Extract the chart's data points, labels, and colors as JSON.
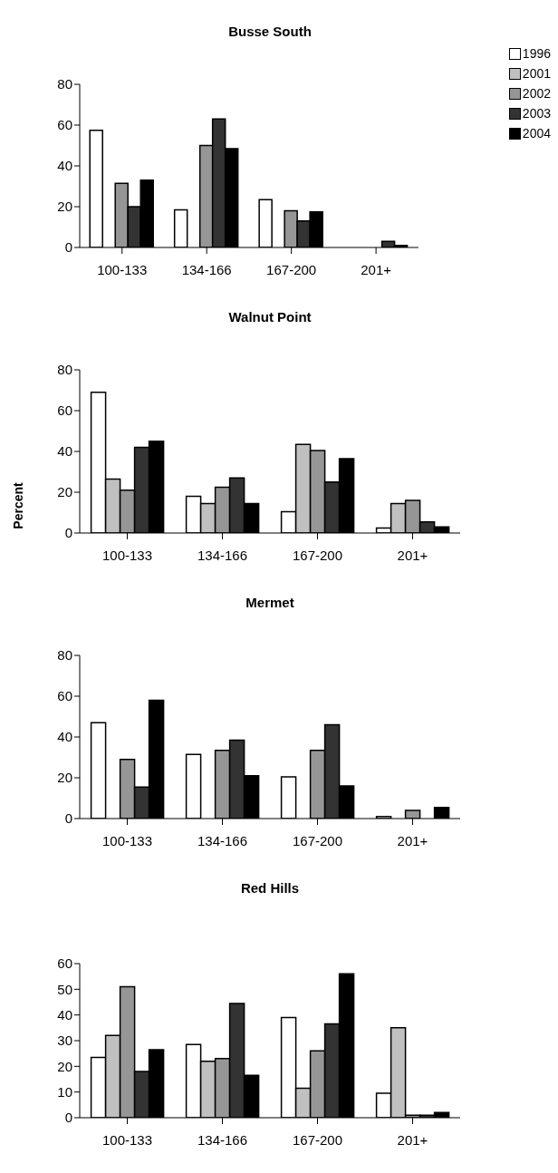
{
  "chart_data": [
    {
      "type": "bar",
      "title": "Busse South",
      "categories": [
        "100-133",
        "134-166",
        "167-200",
        "201+"
      ],
      "ylim": [
        0,
        80
      ],
      "yticks": [
        0,
        20,
        40,
        60,
        80
      ],
      "legend": "right",
      "series": [
        {
          "name": "1996",
          "color": "#ffffff",
          "values": [
            57.5,
            18.5,
            23.5,
            null
          ]
        },
        {
          "name": "2001",
          "color": "#c0c0c0",
          "values": [
            null,
            null,
            null,
            null
          ]
        },
        {
          "name": "2002",
          "color": "#969696",
          "values": [
            31.5,
            50,
            18,
            null
          ]
        },
        {
          "name": "2003",
          "color": "#333333",
          "values": [
            20,
            63,
            13,
            3
          ]
        },
        {
          "name": "2004",
          "color": "#000000",
          "values": [
            33,
            48.5,
            17.5,
            1
          ]
        }
      ]
    },
    {
      "type": "bar",
      "title": "Walnut Point",
      "ylabel": "Percent",
      "categories": [
        "100-133",
        "134-166",
        "167-200",
        "201+"
      ],
      "ylim": [
        0,
        80
      ],
      "yticks": [
        0,
        20,
        40,
        60,
        80
      ],
      "series": [
        {
          "color": "#ffffff",
          "values": [
            69,
            18,
            10.5,
            2.5
          ]
        },
        {
          "color": "#c0c0c0",
          "values": [
            26.5,
            14.5,
            43.5,
            14.5
          ]
        },
        {
          "color": "#969696",
          "values": [
            21,
            22.5,
            40.5,
            16
          ]
        },
        {
          "color": "#333333",
          "values": [
            42,
            27,
            25,
            5.5
          ]
        },
        {
          "color": "#000000",
          "values": [
            45,
            14.5,
            36.5,
            3
          ]
        }
      ]
    },
    {
      "type": "bar",
      "title": "Mermet",
      "categories": [
        "100-133",
        "134-166",
        "167-200",
        "201+"
      ],
      "ylim": [
        0,
        80
      ],
      "yticks": [
        0,
        20,
        40,
        60,
        80
      ],
      "series": [
        {
          "color": "#ffffff",
          "values": [
            47,
            31.5,
            20.5,
            1
          ]
        },
        {
          "color": "#c0c0c0",
          "values": [
            null,
            null,
            null,
            null
          ]
        },
        {
          "color": "#969696",
          "values": [
            29,
            33.5,
            33.5,
            4
          ]
        },
        {
          "color": "#333333",
          "values": [
            15.5,
            38.5,
            46,
            null
          ]
        },
        {
          "color": "#000000",
          "values": [
            58,
            21,
            16,
            5.5
          ]
        }
      ]
    },
    {
      "type": "bar",
      "title": "Red Hills",
      "categories": [
        "100-133",
        "134-166",
        "167-200",
        "201+"
      ],
      "ylim": [
        0,
        60
      ],
      "yticks": [
        0,
        10,
        20,
        30,
        40,
        50,
        60
      ],
      "series": [
        {
          "color": "#ffffff",
          "values": [
            23.5,
            28.5,
            39,
            9.5
          ]
        },
        {
          "color": "#c0c0c0",
          "values": [
            32,
            22,
            11.5,
            35
          ]
        },
        {
          "color": "#969696",
          "values": [
            51,
            23,
            26,
            1
          ]
        },
        {
          "color": "#333333",
          "values": [
            18,
            44.5,
            36.5,
            1
          ]
        },
        {
          "color": "#000000",
          "values": [
            26.5,
            16.5,
            56,
            2
          ]
        }
      ]
    }
  ]
}
